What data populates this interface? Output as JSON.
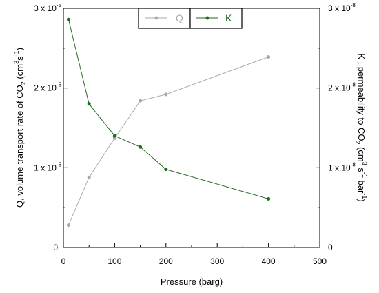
{
  "chart_data": {
    "type": "line",
    "xlabel": "Pressure (barg)",
    "xlim": [
      0,
      500
    ],
    "xticks": [
      "0",
      "100",
      "200",
      "300",
      "400",
      "500"
    ],
    "y_left": {
      "label_parts": [
        "Q, volume transport rate of CO",
        "2",
        " (cm",
        "3",
        "s",
        "-1",
        ")"
      ],
      "lim": [
        0,
        3e-05
      ],
      "tick_labels": [
        {
          "base": "0",
          "exp": ""
        },
        {
          "base": "1 x 10",
          "exp": "-5"
        },
        {
          "base": "2 x 10",
          "exp": "-5"
        },
        {
          "base": "3 x 10",
          "exp": "-5"
        }
      ]
    },
    "y_right": {
      "label_parts": [
        "K , permeability to CO",
        "2",
        " (cm",
        "3",
        " s",
        "-1",
        " bar",
        "-1",
        ")"
      ],
      "lim": [
        0,
        3e-08
      ],
      "tick_labels": [
        {
          "base": "0",
          "exp": ""
        },
        {
          "base": "1 x 10",
          "exp": "-8"
        },
        {
          "base": "2 x 10",
          "exp": "-8"
        },
        {
          "base": "3 x 10",
          "exp": "-8"
        }
      ]
    },
    "legend_placement": "top-center",
    "series": [
      {
        "name": "Q",
        "axis": "left",
        "color": "#a9a9a9",
        "x": [
          10,
          50,
          100,
          150,
          200,
          400
        ],
        "y": [
          2.8e-06,
          8.8e-06,
          1.37e-05,
          1.84e-05,
          1.92e-05,
          2.39e-05
        ]
      },
      {
        "name": "K",
        "axis": "right",
        "color": "#1f6b1f",
        "x": [
          10,
          50,
          100,
          150,
          200,
          400
        ],
        "y": [
          2.86e-08,
          1.8e-08,
          1.4e-08,
          1.26e-08,
          9.8e-09,
          6.1e-09
        ]
      }
    ]
  }
}
